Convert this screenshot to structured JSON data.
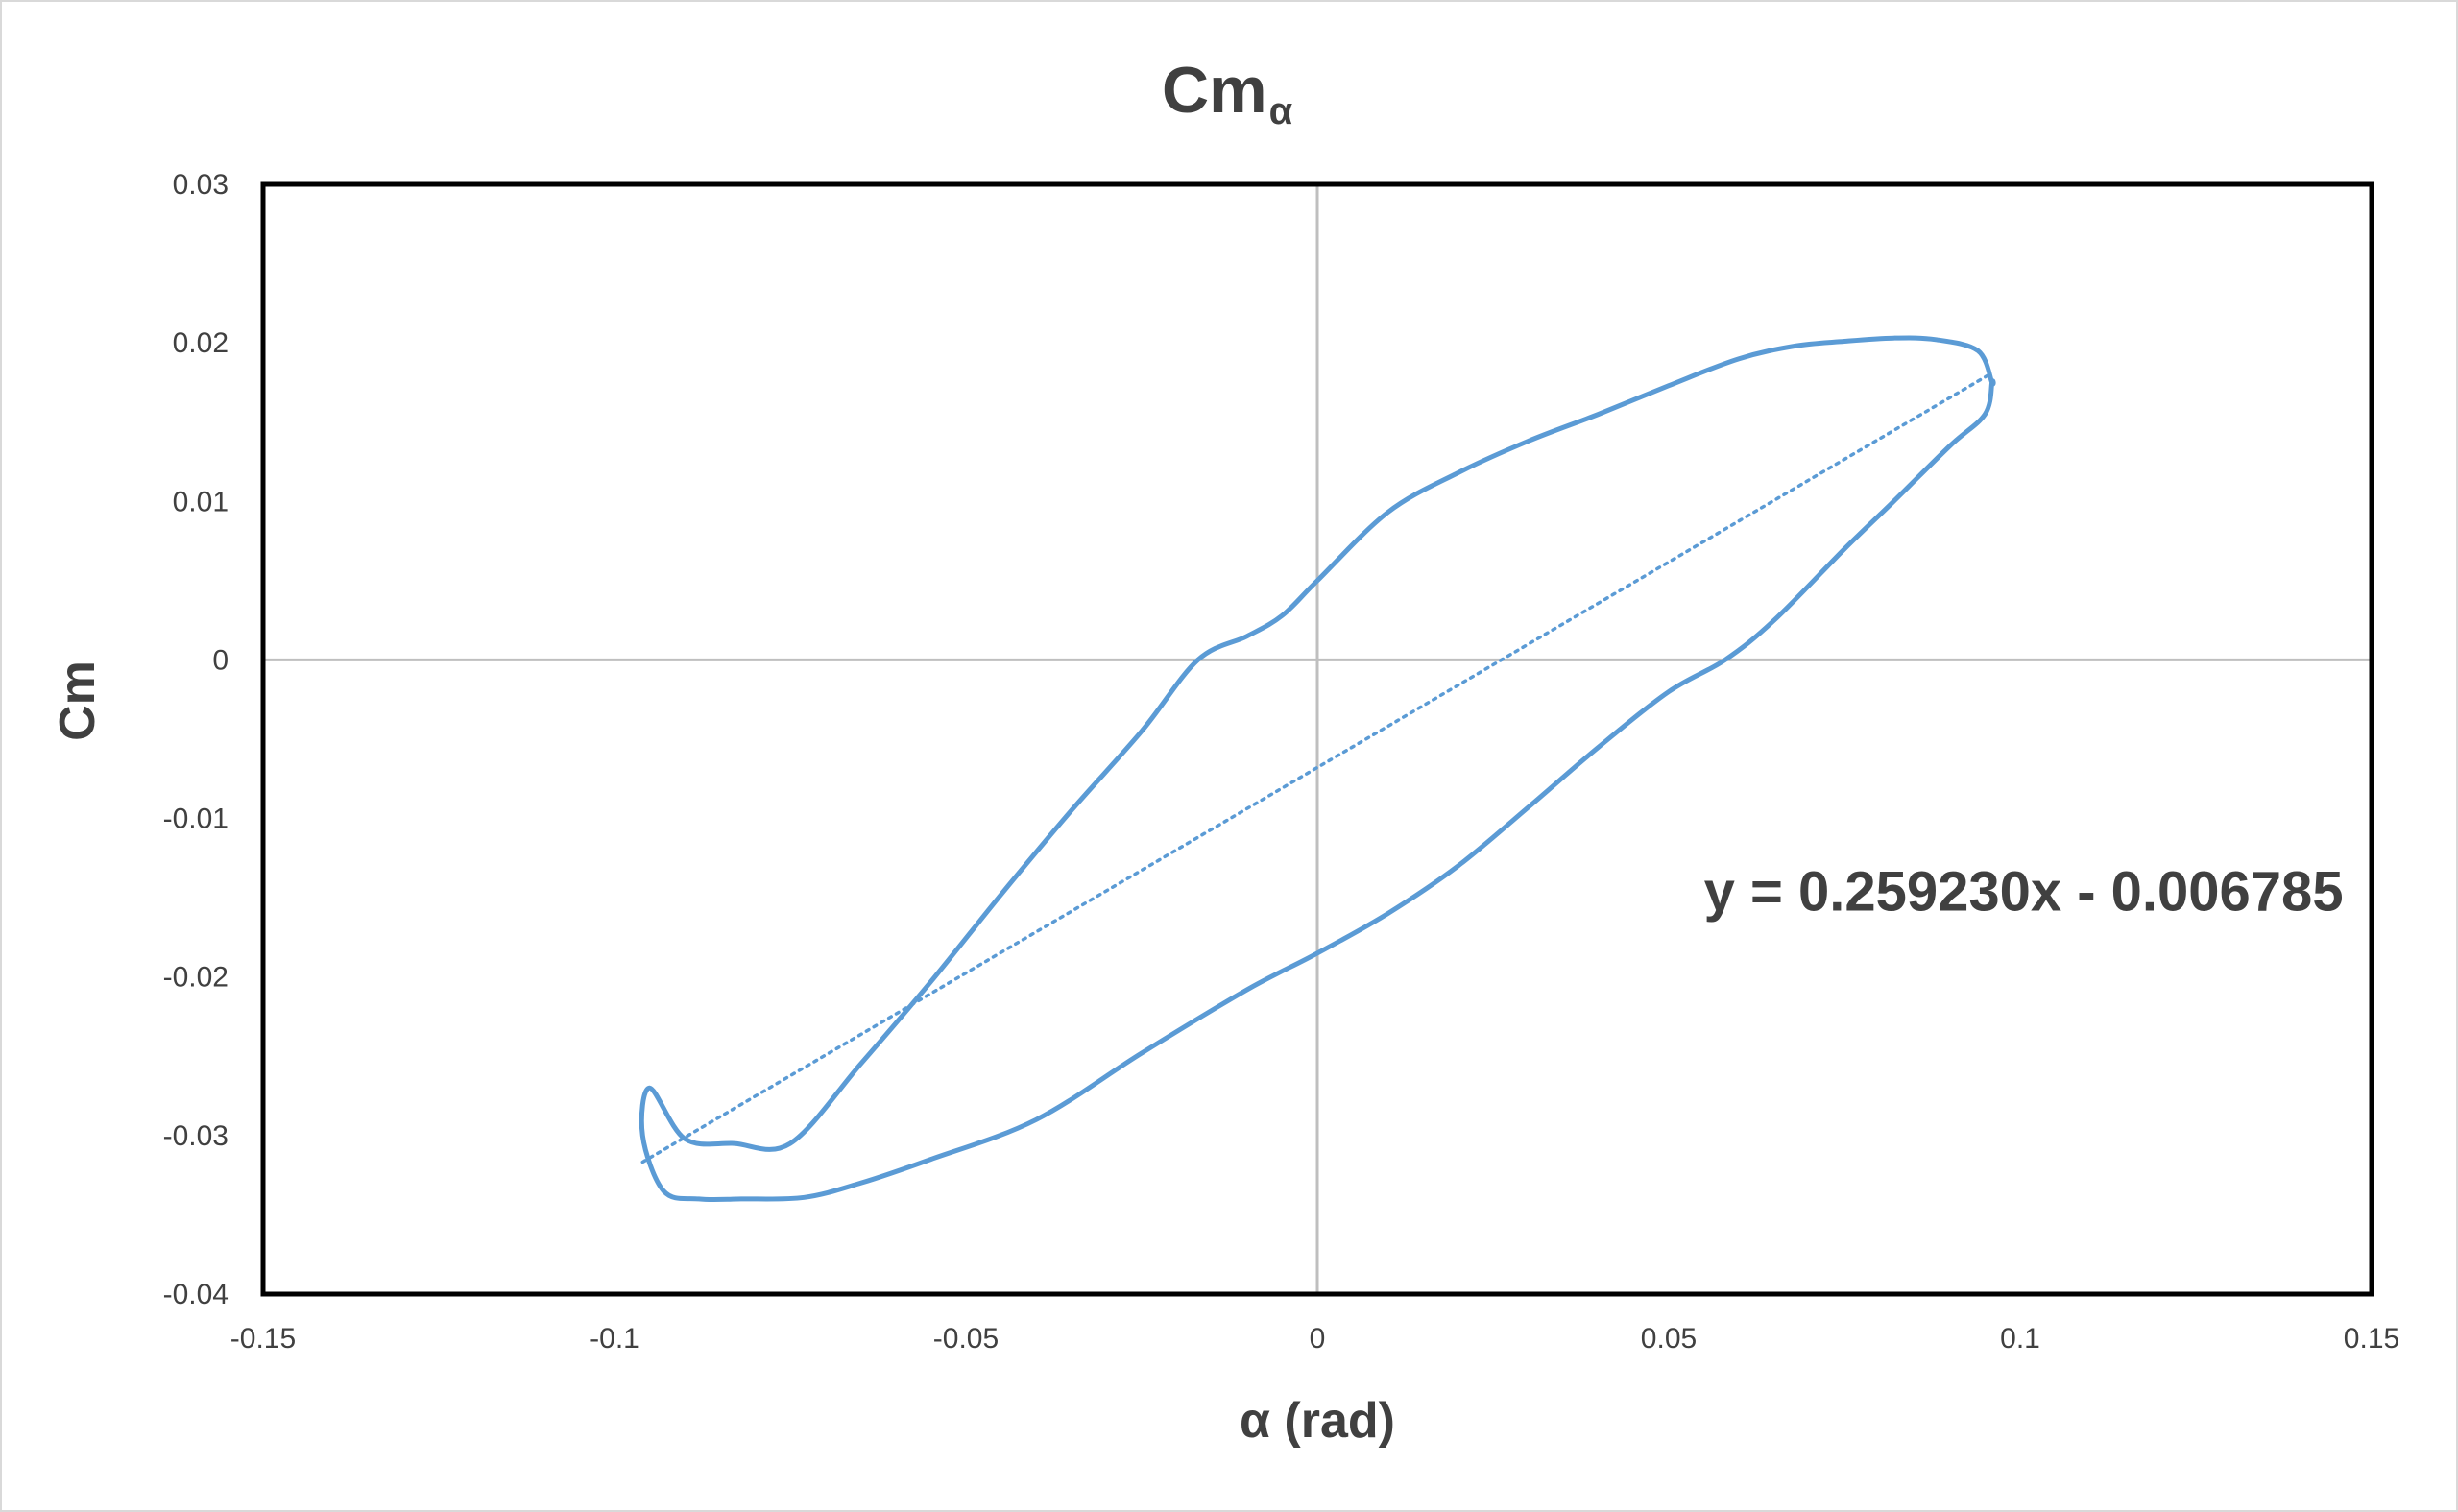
{
  "chart_data": {
    "type": "scatter",
    "title": "Cm",
    "title_subscript": "α",
    "xlabel": "α (rad)",
    "ylabel": "Cm",
    "xlim": [
      -0.15,
      0.15
    ],
    "ylim": [
      -0.04,
      0.03
    ],
    "x_ticks": [
      -0.15,
      -0.1,
      -0.05,
      0,
      0.05,
      0.1,
      0.15
    ],
    "x_tick_labels": [
      "-0.15",
      "-0.1",
      "-0.05",
      "0",
      "0.05",
      "0.1",
      "0.15"
    ],
    "y_ticks": [
      -0.04,
      -0.03,
      -0.02,
      -0.01,
      0,
      0.01,
      0.02,
      0.03
    ],
    "y_tick_labels": [
      "-0.04",
      "-0.03",
      "-0.02",
      "-0.01",
      "0",
      "0.01",
      "0.02",
      "0.03"
    ],
    "grid": false,
    "zero_lines": true,
    "series": [
      {
        "style": "smooth-line",
        "color": "#5b9bd5",
        "closed": true,
        "x": [
          0.096,
          0.094,
          0.088,
          0.082,
          0.075,
          0.068,
          0.06,
          0.05,
          0.04,
          0.03,
          0.02,
          0.01,
          0.0,
          -0.005,
          -0.01,
          -0.017,
          -0.025,
          -0.035,
          -0.045,
          -0.055,
          -0.065,
          -0.075,
          -0.083,
          -0.09,
          -0.095,
          -0.096,
          -0.093,
          -0.088,
          -0.082,
          -0.073,
          -0.065,
          -0.055,
          -0.04,
          -0.025,
          -0.01,
          0.0,
          0.01,
          0.02,
          0.03,
          0.04,
          0.05,
          0.058,
          0.065,
          0.075,
          0.082,
          0.09,
          0.095,
          0.096
        ],
        "y": [
          0.0175,
          0.0195,
          0.0202,
          0.0203,
          0.0201,
          0.0198,
          0.019,
          0.0173,
          0.0155,
          0.0138,
          0.0118,
          0.0093,
          0.005,
          0.0028,
          0.0015,
          0.0,
          -0.0045,
          -0.0095,
          -0.0148,
          -0.0203,
          -0.0255,
          -0.0305,
          -0.0305,
          -0.0302,
          -0.027,
          -0.03,
          -0.0335,
          -0.034,
          -0.034,
          -0.0339,
          -0.033,
          -0.0315,
          -0.029,
          -0.0248,
          -0.0208,
          -0.0185,
          -0.016,
          -0.013,
          -0.0093,
          -0.0055,
          -0.002,
          0.0,
          0.0025,
          0.007,
          0.01,
          0.0135,
          0.0155,
          0.0175
        ]
      },
      {
        "style": "dotted-trendline",
        "color": "#5b9bd5",
        "slope": 0.25923,
        "intercept": -0.006785,
        "x_range": [
          -0.096,
          0.096
        ]
      }
    ],
    "annotations": [
      {
        "text": "y = 0.259230x - 0.006785",
        "x": 0.055,
        "y": -0.0158
      }
    ]
  }
}
